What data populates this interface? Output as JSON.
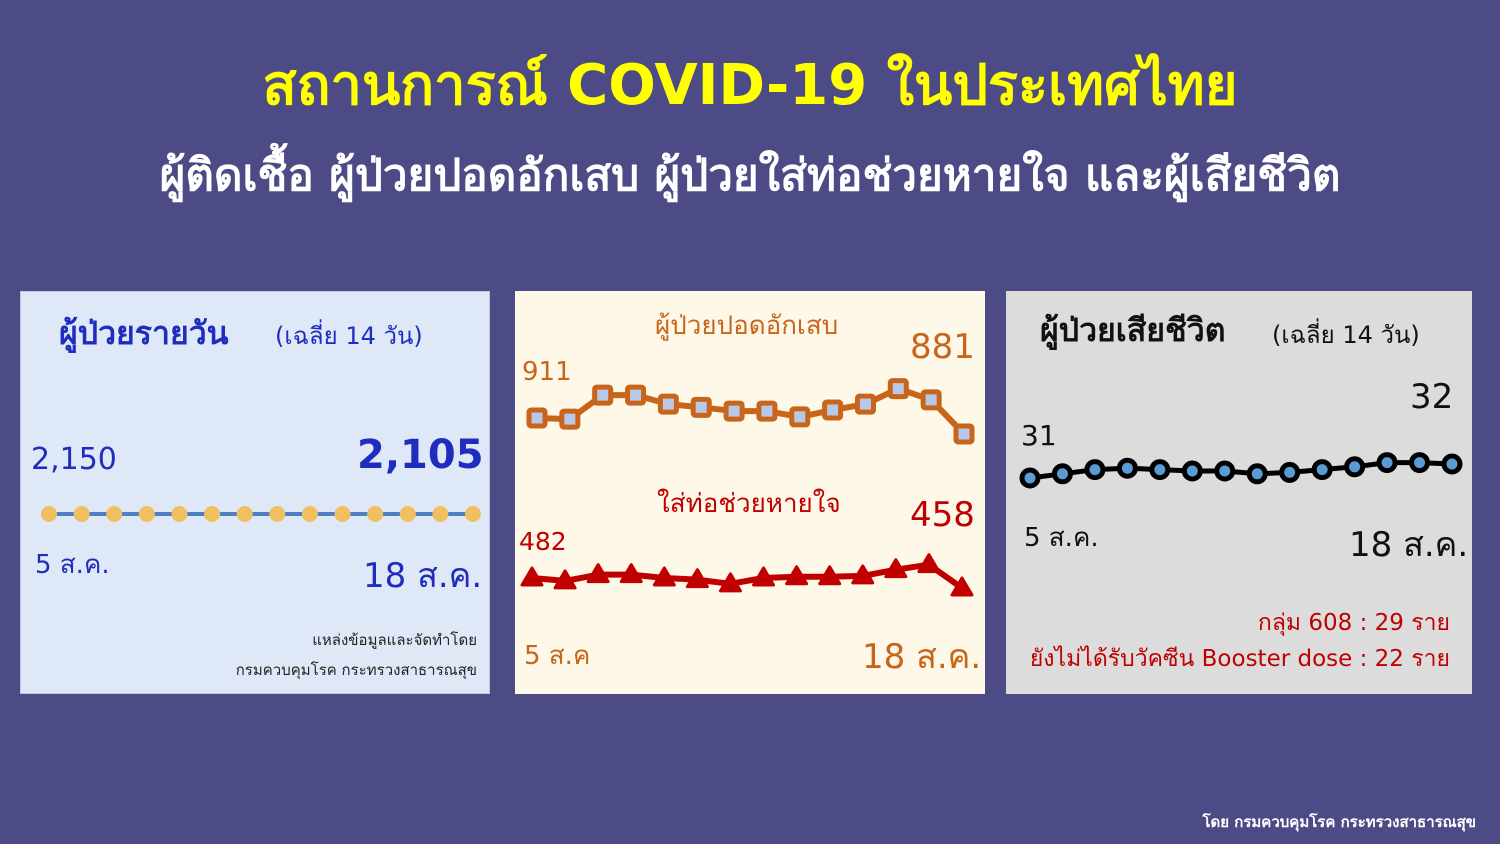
{
  "header": {
    "title": "สถานการณ์ COVID-19 ในประเทศไทย",
    "subtitle": "ผู้ติดเชื้อ ผู้ป่วยปอดอักเสบ ผู้ป่วยใส่ท่อช่วยหายใจ และผู้เสียชีวิต"
  },
  "panel_daily": {
    "title": "ผู้ป่วยรายวัน",
    "title_note": "(เฉลี่ย 14 วัน)",
    "start_value_label": "2,150",
    "end_value_label": "2,105",
    "start_date": "5 ส.ค.",
    "end_date": "18 ส.ค.",
    "source_line1": "แหล่งข้อมูลและจัดทำโดย",
    "source_line2": "กรมควบคุมโรค  กระทรวงสาธารณสุข"
  },
  "panel_hospital": {
    "pneumonia_title": "ผู้ป่วยปอดอักเสบ",
    "pneumonia_start_label": "911",
    "pneumonia_end_label": "881",
    "ventilator_title": "ใส่ท่อช่วยหายใจ",
    "ventilator_start_label": "482",
    "ventilator_end_label": "458",
    "start_date": "5 ส.ค",
    "end_date": "18 ส.ค."
  },
  "panel_deaths": {
    "title": "ผู้ป่วยเสียชีวิต",
    "title_note": "(เฉลี่ย 14 วัน)",
    "start_value_label": "31",
    "end_value_label": "32",
    "start_date": "5 ส.ค.",
    "end_date": "18 ส.ค.",
    "note_608": "กลุ่ม 608 : 29 ราย",
    "note_booster": "ยังไม่ได้รับวัคซีน Booster dose : 22 ราย"
  },
  "footer": "โดย กรมควบคุมโรค กระทรวงสาธารณสุข",
  "colors": {
    "background": "#4d4b86",
    "title": "#ffff00",
    "daily_line": "#4f7fc0",
    "daily_marker": "#f0c060",
    "pneumonia": "#c8651b",
    "ventilator": "#c00000",
    "deaths_line": "#000000",
    "deaths_marker": "#5b9bd5",
    "daily_text": "#1f2dbf"
  },
  "chart_data": [
    {
      "type": "line",
      "name": "daily_cases",
      "series": [
        {
          "name": "ผู้ป่วยรายวัน",
          "values": [
            2150,
            2147,
            2143,
            2140,
            2136,
            2133,
            2130,
            2126,
            2123,
            2119,
            2116,
            2112,
            2109,
            2105
          ]
        }
      ],
      "x_range": [
        "5 ส.ค.",
        "18 ส.ค."
      ],
      "marker": "circle",
      "grid": false
    },
    {
      "type": "line",
      "name": "pneumonia",
      "series": [
        {
          "name": "ผู้ป่วยปอดอักเสบ",
          "values": [
            911,
            909,
            954,
            954,
            937,
            931,
            924,
            924,
            913,
            926,
            937,
            966,
            945,
            881
          ]
        }
      ],
      "x_range": [
        "5 ส.ค",
        "18 ส.ค."
      ],
      "marker": "square",
      "grid": false
    },
    {
      "type": "line",
      "name": "ventilator",
      "series": [
        {
          "name": "ใส่ท่อช่วยหายใจ",
          "values": [
            482,
            475,
            490,
            490,
            482,
            478,
            468,
            482,
            485,
            485,
            487,
            502,
            514,
            458
          ]
        }
      ],
      "x_range": [
        "5 ส.ค",
        "18 ส.ค."
      ],
      "marker": "triangle",
      "grid": false
    },
    {
      "type": "line",
      "name": "deaths",
      "series": [
        {
          "name": "ผู้ป่วยเสียชีวิต",
          "values": [
            31,
            31.3,
            31.6,
            31.7,
            31.6,
            31.5,
            31.5,
            31.3,
            31.4,
            31.6,
            31.8,
            32.1,
            32.1,
            32
          ]
        }
      ],
      "x_range": [
        "5 ส.ค.",
        "18 ส.ค."
      ],
      "marker": "circle",
      "grid": false
    }
  ]
}
